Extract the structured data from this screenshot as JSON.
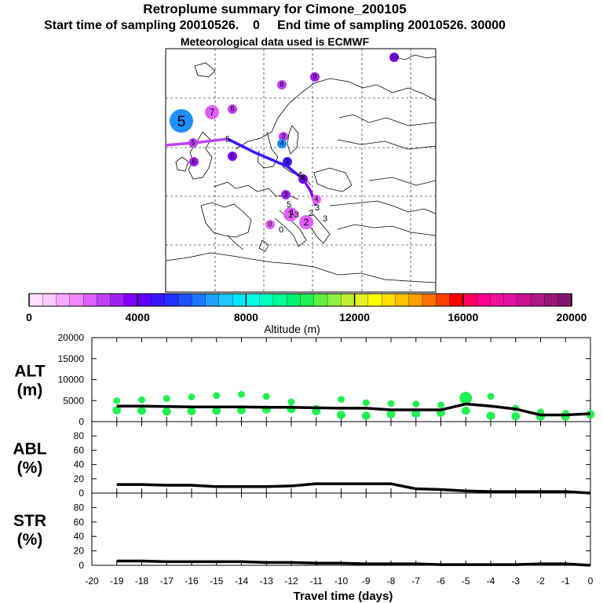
{
  "header": {
    "title": "Retroplume summary for Cimone_200105",
    "sampling": "Start time of sampling 20010526.    0     End time of sampling 20010526. 30000",
    "met": "Meteorological data used is ECMWF"
  },
  "colorbar": {
    "label": "Altitude (m)",
    "ticks": [
      "0",
      "4000",
      "8000",
      "12000",
      "16000",
      "20000"
    ],
    "colors": [
      "#ffe0ff",
      "#ffc8ff",
      "#f5a8ff",
      "#ee88ff",
      "#e060ff",
      "#c040f8",
      "#a020f0",
      "#8000ff",
      "#6000ff",
      "#3c14ff",
      "#2030ff",
      "#1e50ff",
      "#1e78ff",
      "#1ea0ff",
      "#1ec8ff",
      "#00e6ff",
      "#00ffe6",
      "#00ffc0",
      "#00ff96",
      "#00f070",
      "#20f050",
      "#60f040",
      "#90f040",
      "#c0f030",
      "#e8f020",
      "#ffff00",
      "#ffe000",
      "#ffc000",
      "#ffa000",
      "#ff7000",
      "#ff4000",
      "#ff0000",
      "#ff0060",
      "#ff0090",
      "#f0109a",
      "#e010a0",
      "#c81490",
      "#b01888",
      "#981878",
      "#801470"
    ]
  },
  "map": {
    "markers": [
      {
        "label": "5",
        "color": "#1e90ff",
        "size": "large"
      },
      {
        "label": "7",
        "color": "#e060ff",
        "size": "medium"
      },
      {
        "label": "6",
        "color": "#c040f8",
        "size": "small"
      },
      {
        "label": "8",
        "color": "#c040f8",
        "size": "small"
      },
      {
        "label": "9",
        "color": "#a020f0",
        "size": "small"
      },
      {
        "label": "10",
        "color": "#8000ff",
        "size": "small"
      },
      {
        "label": "5",
        "color": "#c040f8",
        "size": "small"
      },
      {
        "label": "6",
        "color": "#a020f0",
        "size": "small"
      },
      {
        "label": "6",
        "color": "#8000ff",
        "size": "small"
      },
      {
        "label": "3",
        "color": "#c040f8",
        "size": "small"
      },
      {
        "label": "4",
        "color": "#1e90ff",
        "size": "small"
      },
      {
        "label": "3",
        "color": "#3c14ff",
        "size": "small"
      },
      {
        "label": "4",
        "color": "#8000ff",
        "size": "small"
      },
      {
        "label": "3",
        "color": "#a020f0",
        "size": "small"
      },
      {
        "label": "4",
        "color": "#e060ff",
        "size": "small"
      },
      {
        "label": "2",
        "color": "#e060ff",
        "size": "medium"
      },
      {
        "label": "1",
        "color": "#e060ff",
        "size": "medium"
      },
      {
        "label": "0",
        "color": "#e060ff",
        "size": "small"
      }
    ],
    "path_labels": [
      "5",
      "4",
      "4",
      "5",
      "3",
      "1",
      "3",
      "2",
      "3",
      "0"
    ]
  },
  "chart_data": [
    {
      "type": "line",
      "panel": "ALT",
      "ylabel": "ALT\n(m)",
      "ylim": [
        0,
        20000
      ],
      "yticks": [
        "20000",
        "15000",
        "10000",
        "5000",
        "0"
      ],
      "x": [
        -19,
        -18,
        -17,
        -16,
        -15,
        -14,
        -13,
        -12,
        -11,
        -10,
        -9,
        -8,
        -7,
        -6,
        -5,
        -4,
        -3,
        -2,
        -1,
        0
      ],
      "series": [
        {
          "name": "mean altitude",
          "values": [
            3700,
            3700,
            3600,
            3500,
            3500,
            3500,
            3400,
            3400,
            3300,
            3200,
            3200,
            2800,
            2800,
            2800,
            4200,
            3700,
            3000,
            1600,
            1600,
            1900
          ]
        }
      ],
      "scatter": [
        {
          "x": -19,
          "y": 5000
        },
        {
          "x": -19,
          "y": 2700
        },
        {
          "x": -18,
          "y": 5200
        },
        {
          "x": -18,
          "y": 2600
        },
        {
          "x": -17,
          "y": 5500
        },
        {
          "x": -17,
          "y": 2400
        },
        {
          "x": -16,
          "y": 5900
        },
        {
          "x": -16,
          "y": 2500
        },
        {
          "x": -15,
          "y": 6200
        },
        {
          "x": -15,
          "y": 2600
        },
        {
          "x": -14,
          "y": 6500
        },
        {
          "x": -14,
          "y": 2700
        },
        {
          "x": -13,
          "y": 6000
        },
        {
          "x": -13,
          "y": 2900
        },
        {
          "x": -12,
          "y": 4700
        },
        {
          "x": -12,
          "y": 3000
        },
        {
          "x": -11,
          "y": 3200
        },
        {
          "x": -11,
          "y": 2500
        },
        {
          "x": -10,
          "y": 5300
        },
        {
          "x": -10,
          "y": 1600
        },
        {
          "x": -9,
          "y": 4500
        },
        {
          "x": -9,
          "y": 1400
        },
        {
          "x": -8,
          "y": 4300
        },
        {
          "x": -8,
          "y": 1800
        },
        {
          "x": -7,
          "y": 4200
        },
        {
          "x": -7,
          "y": 1900
        },
        {
          "x": -6,
          "y": 4000
        },
        {
          "x": -6,
          "y": 2100
        },
        {
          "x": -5,
          "y": 5500
        },
        {
          "x": -5,
          "y": 2600
        },
        {
          "x": -4,
          "y": 6000
        },
        {
          "x": -4,
          "y": 1400
        },
        {
          "x": -3,
          "y": 3200
        },
        {
          "x": -3,
          "y": 1300
        },
        {
          "x": -2,
          "y": 2300
        },
        {
          "x": -2,
          "y": 1200
        },
        {
          "x": -1,
          "y": 2000
        },
        {
          "x": -1,
          "y": 1200
        },
        {
          "x": 0,
          "y": 2000
        },
        {
          "x": 0,
          "y": 1700
        }
      ]
    },
    {
      "type": "line",
      "panel": "ABL",
      "ylabel": "ABL\n(%)",
      "ylim": [
        0,
        100
      ],
      "yticks": [
        "80",
        "60",
        "40",
        "20",
        "0"
      ],
      "x": [
        -19,
        -18,
        -17,
        -16,
        -15,
        -14,
        -13,
        -12,
        -11,
        -10,
        -9,
        -8,
        -7,
        -6,
        -5,
        -4,
        -3,
        -2,
        -1,
        0
      ],
      "series": [
        {
          "name": "ABL fraction",
          "values": [
            12,
            12,
            11,
            11,
            9,
            9,
            9,
            10,
            13,
            13,
            13,
            13,
            6,
            5,
            3,
            2,
            2,
            2,
            2,
            0
          ]
        }
      ]
    },
    {
      "type": "line",
      "panel": "STR",
      "ylabel": "STR\n(%)",
      "ylim": [
        0,
        100
      ],
      "yticks": [
        "80",
        "60",
        "40",
        "20",
        "0"
      ],
      "x": [
        -19,
        -18,
        -17,
        -16,
        -15,
        -14,
        -13,
        -12,
        -11,
        -10,
        -9,
        -8,
        -7,
        -6,
        -5,
        -4,
        -3,
        -2,
        -1,
        0
      ],
      "series": [
        {
          "name": "STR fraction",
          "values": [
            6,
            6,
            5,
            5,
            5,
            5,
            4,
            4,
            3,
            3,
            2,
            2,
            2,
            1,
            1,
            1,
            1,
            2,
            2,
            0
          ]
        }
      ],
      "xlabel": "Travel time (days)",
      "xlim": [
        -20,
        0
      ],
      "xticks": [
        "-20",
        "-19",
        "-18",
        "-17",
        "-16",
        "-15",
        "-14",
        "-13",
        "-12",
        "-11",
        "-10",
        "-9",
        "-8",
        "-7",
        "-6",
        "-5",
        "-4",
        "-3",
        "-2",
        "-1",
        "0"
      ]
    }
  ]
}
